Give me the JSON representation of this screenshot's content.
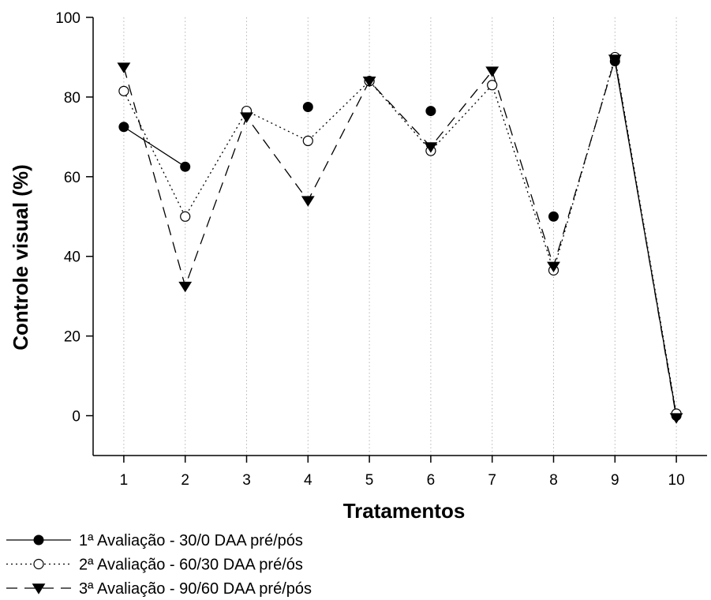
{
  "chart_data": {
    "type": "line",
    "xlabel": "Tratamentos",
    "ylabel": "Controle visual (%)",
    "x": [
      1,
      2,
      3,
      4,
      5,
      6,
      7,
      8,
      9,
      10
    ],
    "xlim": [
      0.5,
      10.5
    ],
    "ylim": [
      -10,
      100
    ],
    "yticks": [
      0,
      20,
      40,
      60,
      80,
      100
    ],
    "grid": "vertical dotted lines at x ticks",
    "legend_position": "bottom-left, below plot",
    "series": [
      {
        "name": "1ª Avaliação - 30/0 DAA pré/pós",
        "values": [
          72.5,
          62.5,
          null,
          77.5,
          84,
          76.5,
          null,
          50,
          89,
          0
        ],
        "connected_segments": [
          [
            1,
            2
          ],
          [
            9,
            10
          ]
        ],
        "marker": "filled-circle",
        "line_style": "solid",
        "color": "#000000"
      },
      {
        "name": "2ª Avaliação - 60/30 DAA pré/ós",
        "values": [
          81.5,
          50,
          76.5,
          69,
          84,
          66.5,
          83,
          36.5,
          90,
          0.5
        ],
        "marker": "open-circle",
        "line_style": "dotted",
        "color": "#000000"
      },
      {
        "name": "3ª Avaliação - 90/60 DAA  pré/pós",
        "values": [
          87.5,
          32.5,
          75,
          54,
          84,
          67.5,
          86.5,
          37.5,
          89.5,
          -0.5
        ],
        "marker": "filled-triangle-down",
        "line_style": "dashed",
        "color": "#000000"
      }
    ]
  }
}
